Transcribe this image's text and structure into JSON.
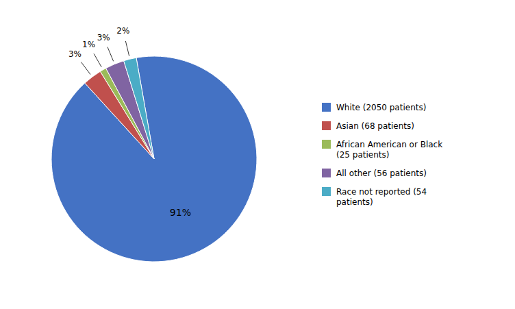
{
  "chart_data": {
    "type": "pie",
    "categories": [
      "White (2050 patients)",
      "Asian (68 patients)",
      "African American or Black\n(25 patients)",
      "All other (56 patients)",
      "Race not reported (54\npatients)"
    ],
    "values": [
      91,
      3,
      1,
      3,
      2
    ],
    "value_labels": [
      "91%",
      "3%",
      "1%",
      "3%",
      "2%"
    ],
    "colors": [
      "#4472C4",
      "#C0504D",
      "#9BBB59",
      "#8064A2",
      "#4BACC6"
    ],
    "data_labels": true,
    "legend": "right"
  }
}
